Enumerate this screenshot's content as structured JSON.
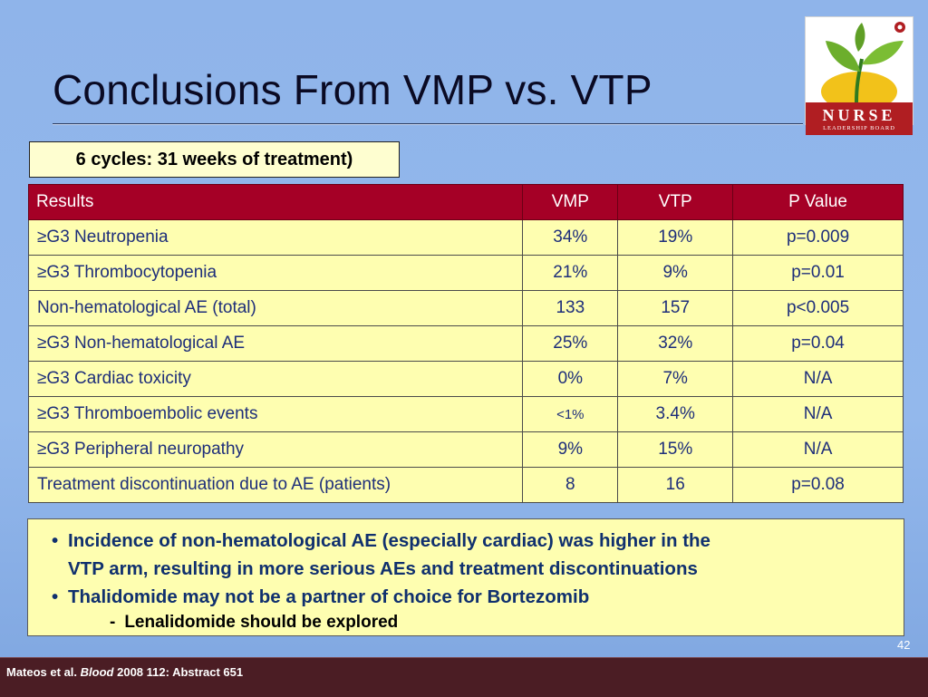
{
  "slide": {
    "title": "Conclusions From VMP vs. VTP",
    "page_number": "42",
    "cycles_note": "6 cycles: 31 weeks of treatment)"
  },
  "logo": {
    "word": "NURSE",
    "subtitle": "LEADERSHIP BOARD"
  },
  "table": {
    "headers": [
      "Results",
      "VMP",
      "VTP",
      "P Value"
    ],
    "rows": [
      [
        "≥G3 Neutropenia",
        "34%",
        "19%",
        "p=0.009"
      ],
      [
        "≥G3 Thrombocytopenia",
        "21%",
        "9%",
        "p=0.01"
      ],
      [
        "Non-hematological AE (total)",
        "133",
        "157",
        "p<0.005"
      ],
      [
        "≥G3 Non-hematological AE",
        "25%",
        "32%",
        "p=0.04"
      ],
      [
        "≥G3 Cardiac toxicity",
        "0%",
        "7%",
        "N/A"
      ],
      [
        "≥G3 Thromboembolic events",
        "<1%",
        "3.4%",
        "N/A"
      ],
      [
        "≥G3 Peripheral neuropathy",
        "9%",
        "15%",
        "N/A"
      ],
      [
        "Treatment discontinuation due to AE (patients)",
        "8",
        "16",
        "p=0.08"
      ]
    ]
  },
  "conclusions": {
    "bullet_1_line_1": "Incidence of non-hematological AE (especially cardiac) was higher in the",
    "bullet_1_line_2": "VTP arm, resulting in more serious AEs and treatment discontinuations",
    "bullet_2": "Thalidomide may not be a partner of choice for Bortezomib",
    "sub_dash": "-",
    "sub_bullet": "Lenalidomide should be explored"
  },
  "footer": {
    "authors": "Mateos et al.",
    "journal": "Blood",
    "reference": "2008 112: Abstract 651"
  },
  "colors": {
    "background": "#93b8ec",
    "table_header": "#a50026",
    "table_body": "#fefeb0",
    "footer": "#4b1d24",
    "text_blue": "#1e2e7a"
  }
}
